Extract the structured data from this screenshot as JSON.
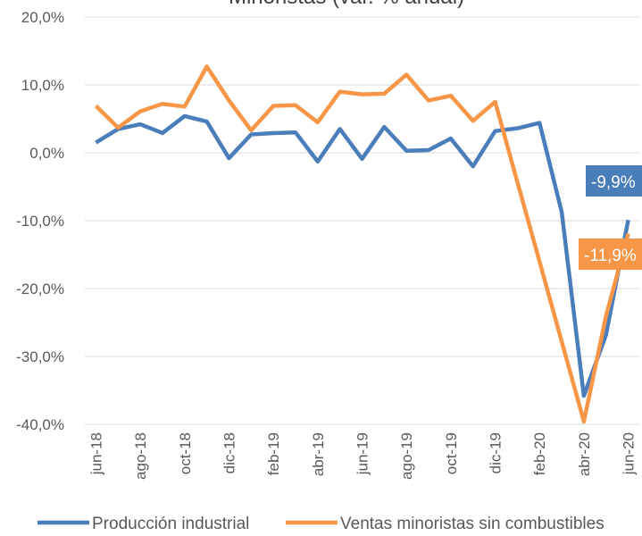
{
  "chart_data": {
    "type": "line",
    "title": "Minoristas (var. % anual)",
    "categories": [
      "jun-18",
      null,
      "ago-18",
      null,
      "oct-18",
      null,
      "dic-18",
      null,
      "feb-19",
      null,
      "abr-19",
      null,
      "jun-19",
      null,
      "ago-19",
      null,
      "oct-19",
      null,
      "dic-19",
      null,
      "feb-20",
      null,
      "abr-20",
      null,
      "jun-20"
    ],
    "series": [
      {
        "name": "Producción industrial",
        "color": "#4a7ebb",
        "values": [
          1.5,
          3.5,
          4.2,
          2.9,
          5.4,
          4.6,
          -0.8,
          2.7,
          2.9,
          3.0,
          -1.3,
          3.5,
          -0.9,
          3.8,
          0.3,
          0.4,
          2.1,
          -2.0,
          3.2,
          3.6,
          4.4,
          -8.7,
          -35.8,
          -26.8,
          -9.9
        ],
        "value_labels": [
          null,
          null,
          null,
          null,
          null,
          null,
          null,
          null,
          null,
          null,
          null,
          null,
          null,
          null,
          null,
          null,
          null,
          null,
          null,
          null,
          null,
          null,
          null,
          null,
          "-9,9%"
        ]
      },
      {
        "name": "Ventas minoristas sin combustibles",
        "color": "#f79646",
        "values": [
          6.9,
          3.7,
          6.1,
          7.2,
          6.8,
          12.7,
          7.7,
          3.3,
          6.9,
          7.0,
          4.5,
          9.0,
          8.6,
          8.7,
          11.5,
          7.7,
          8.4,
          4.7,
          7.5,
          -4.3,
          -16.0,
          -27.8,
          -39.6,
          -24.0,
          -11.9
        ],
        "value_labels": [
          null,
          null,
          null,
          null,
          null,
          null,
          null,
          null,
          null,
          null,
          null,
          null,
          null,
          null,
          null,
          null,
          null,
          null,
          null,
          null,
          null,
          null,
          null,
          null,
          "-11,9%"
        ]
      }
    ],
    "ylim": [
      -40,
      20
    ],
    "yticks": [
      {
        "value": -40,
        "label": "-40,0%"
      },
      {
        "value": -30,
        "label": "-30,0%"
      },
      {
        "value": -20,
        "label": "-20,0%"
      },
      {
        "value": -10,
        "label": "-10,0%"
      },
      {
        "value": 0,
        "label": "0,0%"
      },
      {
        "value": 10,
        "label": "10,0%"
      },
      {
        "value": 20,
        "label": "20,0%"
      }
    ],
    "grid": true,
    "legend": "bottom"
  }
}
